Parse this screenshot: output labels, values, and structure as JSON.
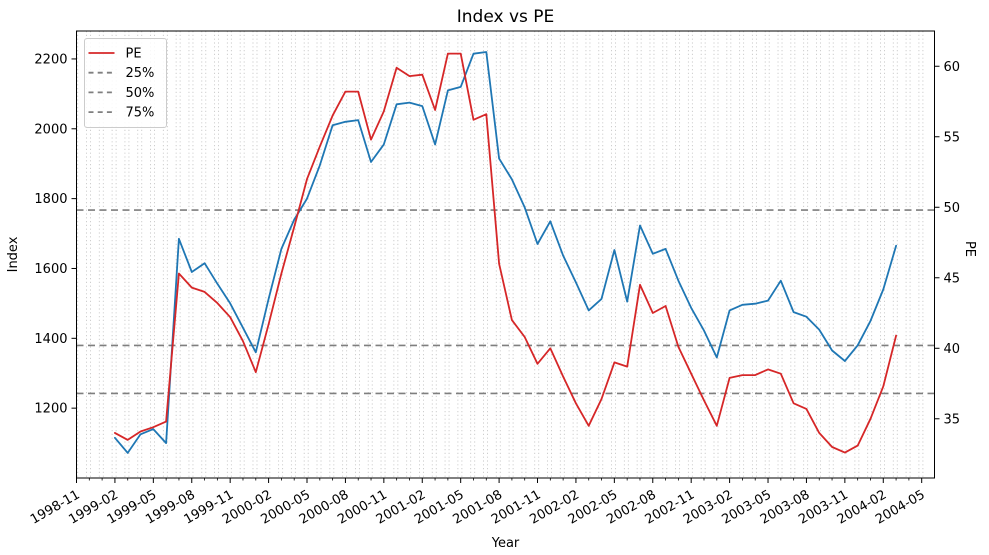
{
  "title": "Index vs PE",
  "colors": {
    "index_line": "#1f77b4",
    "pe_line": "#d62728",
    "quantile_line": "#7f7f7f",
    "grid_line": "#c9c9c9",
    "spine": "#000000",
    "legend_border": "#cccccc",
    "legend_background": "rgba(255,255,255,0.85)"
  },
  "legend": {
    "items": [
      {
        "label": "PE",
        "style": "solid",
        "color": "#d62728"
      },
      {
        "label": "25%",
        "style": "dashed",
        "color": "#7f7f7f"
      },
      {
        "label": "50%",
        "style": "dashed",
        "color": "#7f7f7f"
      },
      {
        "label": "75%",
        "style": "dashed",
        "color": "#7f7f7f"
      }
    ],
    "position": "upper left"
  },
  "chart_data": {
    "type": "line",
    "title": "Index vs PE",
    "xlabel": "Year",
    "ylabel_left": "Index",
    "ylabel_right": "PE",
    "grid": "vertical monthly dotted",
    "legend_position": "upper left",
    "x": [
      "1999-02",
      "1999-03",
      "1999-04",
      "1999-05",
      "1999-06",
      "1999-07",
      "1999-08",
      "1999-09",
      "1999-10",
      "1999-11",
      "1999-12",
      "2000-01",
      "2000-02",
      "2000-03",
      "2000-04",
      "2000-05",
      "2000-06",
      "2000-07",
      "2000-08",
      "2000-09",
      "2000-10",
      "2000-11",
      "2000-12",
      "2001-01",
      "2001-02",
      "2001-03",
      "2001-04",
      "2001-05",
      "2001-06",
      "2001-07",
      "2001-08",
      "2001-09",
      "2001-10",
      "2001-11",
      "2001-12",
      "2002-01",
      "2002-02",
      "2002-03",
      "2002-04",
      "2002-05",
      "2002-06",
      "2002-07",
      "2002-08",
      "2002-09",
      "2002-10",
      "2002-11",
      "2002-12",
      "2003-01",
      "2003-02",
      "2003-03",
      "2003-04",
      "2003-05",
      "2003-06",
      "2003-07",
      "2003-08",
      "2003-09",
      "2003-10",
      "2003-11",
      "2003-12",
      "2004-01",
      "2004-02",
      "2004-03"
    ],
    "series": [
      {
        "name": "Index",
        "axis": "left",
        "color": "#1f77b4",
        "values": [
          1115,
          1072,
          1125,
          1140,
          1100,
          1685,
          1590,
          1615,
          1556,
          1500,
          1430,
          1360,
          1513,
          1656,
          1740,
          1800,
          1895,
          2010,
          2020,
          2025,
          1905,
          1955,
          2070,
          2075,
          2065,
          1955,
          2110,
          2120,
          2215,
          2220,
          1915,
          1855,
          1775,
          1670,
          1735,
          1637,
          1560,
          1480,
          1513,
          1653,
          1505,
          1723,
          1642,
          1656,
          1565,
          1487,
          1422,
          1345,
          1480,
          1496,
          1499,
          1508,
          1565,
          1475,
          1462,
          1425,
          1365,
          1335,
          1380,
          1450,
          1540,
          1665
        ]
      },
      {
        "name": "PE",
        "axis": "right",
        "color": "#d62728",
        "values": [
          34.0,
          33.5,
          34.1,
          34.4,
          34.8,
          45.3,
          44.3,
          44.0,
          43.2,
          42.2,
          40.5,
          38.3,
          41.7,
          45.3,
          48.6,
          52.0,
          54.3,
          56.5,
          58.2,
          58.2,
          54.8,
          56.8,
          59.9,
          59.3,
          59.4,
          56.9,
          60.9,
          60.9,
          56.2,
          56.6,
          46.0,
          42.0,
          40.8,
          38.9,
          40.0,
          38.0,
          36.1,
          34.5,
          36.4,
          39.0,
          38.7,
          44.5,
          42.5,
          43.0,
          40.1,
          38.2,
          36.3,
          34.5,
          37.9,
          38.1,
          38.1,
          38.5,
          38.2,
          36.1,
          35.7,
          34.0,
          33.0,
          32.6,
          33.1,
          35.0,
          37.3,
          40.9
        ]
      }
    ],
    "reference_lines": [
      {
        "label": "25%",
        "axis": "right",
        "value": 36.8,
        "style": "dashed",
        "color": "#7f7f7f"
      },
      {
        "label": "50%",
        "axis": "right",
        "value": 40.2,
        "style": "dashed",
        "color": "#7f7f7f"
      },
      {
        "label": "75%",
        "axis": "right",
        "value": 49.8,
        "style": "dashed",
        "color": "#7f7f7f"
      }
    ],
    "yticks_left": [
      1200,
      1400,
      1600,
      1800,
      2000,
      2200
    ],
    "yticks_right": [
      35,
      40,
      45,
      50,
      55,
      60
    ],
    "ylim_left": [
      1000,
      2280
    ],
    "ylim_right": [
      30.8,
      62.5
    ],
    "x_start": "1998-11",
    "x_tick_labels": [
      "1998-11",
      "1999-02",
      "1999-05",
      "1999-08",
      "1999-11",
      "2000-02",
      "2000-05",
      "2000-08",
      "2000-11",
      "2001-02",
      "2001-05",
      "2001-08",
      "2001-11",
      "2002-02",
      "2002-05",
      "2002-08",
      "2002-11",
      "2003-02",
      "2003-05",
      "2003-08",
      "2003-11",
      "2004-02",
      "2004-05"
    ]
  }
}
